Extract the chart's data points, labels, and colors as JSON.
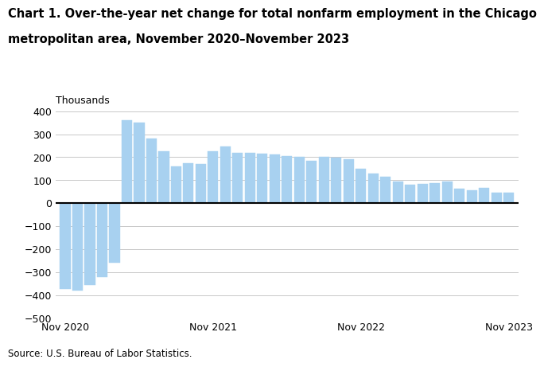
{
  "title_line1": "Chart 1. Over-the-year net change for total nonfarm employment in the Chicago",
  "title_line2": "metropolitan area, November 2020–November 2023",
  "ylabel": "Thousands",
  "source": "Source: U.S. Bureau of Labor Statistics.",
  "bar_color": "#a8d1f0",
  "bar_edge_color": "#a8d1f0",
  "ylim": [
    -500,
    400
  ],
  "yticks": [
    -500,
    -400,
    -300,
    -200,
    -100,
    0,
    100,
    200,
    300,
    400
  ],
  "xtick_labels": [
    "Nov 2020",
    "Nov 2021",
    "Nov 2022",
    "Nov 2023"
  ],
  "xtick_positions": [
    0,
    12,
    24,
    36
  ],
  "values": [
    -375,
    -380,
    -355,
    -320,
    -260,
    360,
    350,
    280,
    225,
    160,
    175,
    170,
    225,
    248,
    220,
    218,
    215,
    210,
    205,
    200,
    185,
    200,
    198,
    190,
    150,
    130,
    115,
    95,
    80,
    82,
    88,
    95,
    62,
    55,
    65,
    45,
    45
  ],
  "n_bars": 37,
  "background_color": "#ffffff",
  "grid_color": "#c8c8c8",
  "zero_line_color": "#000000",
  "title_fontsize": 10.5,
  "axis_fontsize": 9,
  "source_fontsize": 8.5
}
